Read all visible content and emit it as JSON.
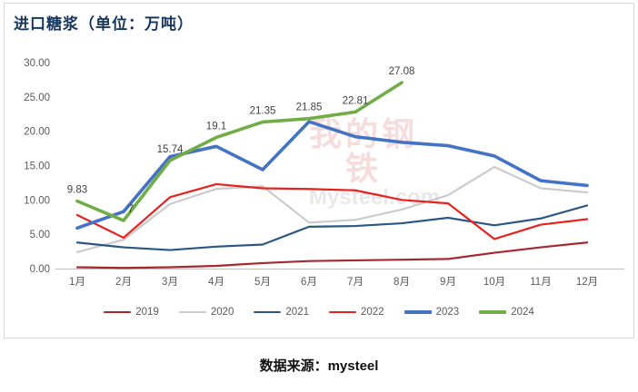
{
  "header": {
    "title": "进口糖浆（单位：万吨）"
  },
  "footer": {
    "source": "数据来源：mysteel"
  },
  "watermark": {
    "text_cn": "我的钢铁",
    "text_en": "Mysteel.com"
  },
  "chart_data": {
    "type": "line",
    "title": "进口糖浆（单位：万吨）",
    "unit": "万吨",
    "categories": [
      "1月",
      "2月",
      "3月",
      "4月",
      "5月",
      "6月",
      "7月",
      "8月",
      "9月",
      "10月",
      "11月",
      "12月"
    ],
    "ylim": [
      0,
      30
    ],
    "yticks": [
      "0.00",
      "5.00",
      "10.00",
      "15.00",
      "20.00",
      "25.00",
      "30.00"
    ],
    "grid": false,
    "legend_position": "bottom",
    "axis_color": "#BFBFBF",
    "tick_label_color": "#595959",
    "data_label_color": "#404040",
    "series": [
      {
        "name": "2019",
        "color": "#A5282F",
        "width": 2.2,
        "values": [
          0.2,
          0.1,
          0.2,
          0.4,
          0.8,
          1.1,
          1.2,
          1.3,
          1.4,
          2.3,
          3.1,
          3.8
        ]
      },
      {
        "name": "2020",
        "color": "#CBCBCB",
        "width": 2.2,
        "values": [
          2.4,
          4.2,
          9.4,
          11.6,
          12.0,
          6.7,
          7.1,
          8.6,
          10.7,
          14.8,
          11.7,
          11.1
        ]
      },
      {
        "name": "2021",
        "color": "#2A5783",
        "width": 2.2,
        "values": [
          3.8,
          3.1,
          2.7,
          3.2,
          3.5,
          6.1,
          6.2,
          6.6,
          7.4,
          6.3,
          7.3,
          9.2
        ]
      },
      {
        "name": "2022",
        "color": "#E8211D",
        "width": 2.2,
        "values": [
          7.8,
          4.5,
          10.4,
          12.3,
          11.7,
          11.6,
          11.4,
          10.0,
          9.5,
          4.3,
          6.4,
          7.2
        ]
      },
      {
        "name": "2023",
        "color": "#4472C4",
        "width": 3.6,
        "values": [
          5.9,
          8.3,
          16.3,
          17.8,
          14.4,
          21.4,
          19.2,
          18.4,
          17.9,
          16.4,
          12.8,
          12.1
        ]
      },
      {
        "name": "2024",
        "color": "#70AD47",
        "width": 3.6,
        "values": [
          9.83,
          7,
          15.74,
          19.1,
          21.35,
          21.85,
          22.81,
          27.08,
          null,
          null,
          null,
          null
        ],
        "labels": [
          "9.83",
          "7",
          "15.74",
          "19.1",
          "21.35",
          "21.85",
          "22.81",
          "27.08"
        ]
      }
    ]
  }
}
